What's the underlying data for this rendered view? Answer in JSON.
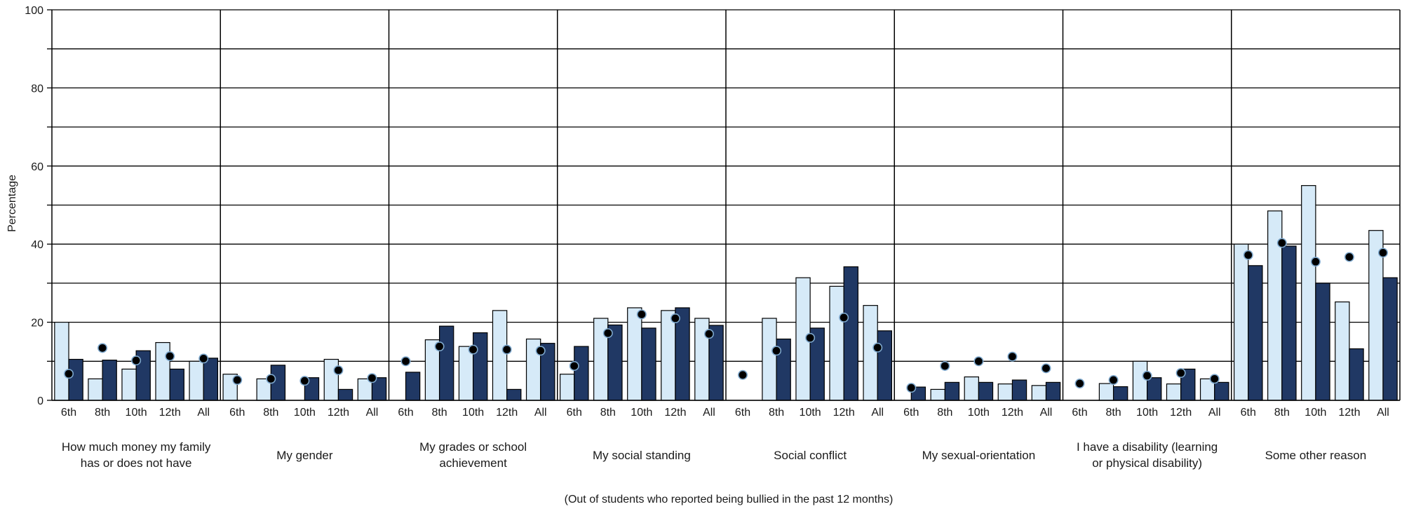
{
  "chart_data": {
    "type": "bar",
    "ylabel": "Percentage",
    "xlabel": "(Out of students who reported being bullied in the past 12 months)",
    "ylim": [
      0,
      100
    ],
    "y_ticks": [
      "0",
      "20",
      "40",
      "60",
      "80",
      "100"
    ],
    "grid": true,
    "legend": "none",
    "colors": {
      "bar_light": "#d6eaf8",
      "bar_dark": "#203864",
      "dot": "#000000",
      "dot_outline": "#7da7cc"
    },
    "x_tick_labels": [
      "6th",
      "8th",
      "10th",
      "12th",
      "All"
    ],
    "categories": [
      {
        "label": "How much money my family has or does not have",
        "label_lines": [
          "How much money my family",
          "has or does not have"
        ],
        "light": [
          20.0,
          5.5,
          8.0,
          14.8,
          10.0
        ],
        "dark": [
          10.5,
          10.3,
          12.7,
          8.0,
          10.8
        ],
        "dot": [
          6.8,
          13.4,
          10.2,
          11.3,
          10.7
        ]
      },
      {
        "label": "My gender",
        "label_lines": [
          "My gender"
        ],
        "light": [
          6.7,
          5.5,
          0,
          10.5,
          5.5
        ],
        "dark": [
          0,
          9.0,
          5.8,
          2.8,
          5.8
        ],
        "dot": [
          5.2,
          5.5,
          5.0,
          7.7,
          5.7
        ]
      },
      {
        "label": "My grades or school achievement",
        "label_lines": [
          "My grades or school",
          "achievement"
        ],
        "light": [
          0,
          15.5,
          13.8,
          23.0,
          15.7
        ],
        "dark": [
          7.2,
          19.0,
          17.3,
          2.8,
          14.6
        ],
        "dot": [
          10.0,
          13.8,
          13.0,
          13.0,
          12.7
        ]
      },
      {
        "label": "My social standing",
        "label_lines": [
          "My social standing"
        ],
        "light": [
          6.7,
          21.0,
          23.7,
          23.0,
          21.0
        ],
        "dark": [
          13.8,
          19.3,
          18.5,
          23.7,
          19.2
        ],
        "dot": [
          8.8,
          17.2,
          22.0,
          21.0,
          17.0
        ]
      },
      {
        "label": "Social conflict",
        "label_lines": [
          "Social conflict"
        ],
        "light": [
          0,
          21.0,
          31.4,
          29.2,
          24.3
        ],
        "dark": [
          0,
          15.7,
          18.5,
          34.2,
          17.8
        ],
        "dot": [
          6.5,
          12.7,
          16.0,
          21.2,
          13.5
        ]
      },
      {
        "label": "My sexual-orientation",
        "label_lines": [
          "My sexual-orientation"
        ],
        "light": [
          0,
          2.8,
          6.0,
          4.2,
          3.8
        ],
        "dark": [
          3.4,
          4.6,
          4.6,
          5.2,
          4.6
        ],
        "dot": [
          3.2,
          8.8,
          10.0,
          11.2,
          8.2
        ]
      },
      {
        "label": "I have a disability (learning or physical disability)",
        "label_lines": [
          "I have a disability (learning",
          "or physical disability)"
        ],
        "light": [
          0,
          4.3,
          10.0,
          4.2,
          5.5
        ],
        "dark": [
          0,
          3.5,
          5.8,
          8.0,
          4.6
        ],
        "dot": [
          4.3,
          5.2,
          6.3,
          7.0,
          5.5
        ]
      },
      {
        "label": "Some other reason",
        "label_lines": [
          "Some other reason"
        ],
        "light": [
          40.0,
          48.5,
          55.0,
          25.2,
          43.5
        ],
        "dark": [
          34.5,
          39.5,
          30.0,
          13.2,
          31.4
        ],
        "dot": [
          37.2,
          40.3,
          35.5,
          36.7,
          37.8
        ]
      }
    ]
  }
}
